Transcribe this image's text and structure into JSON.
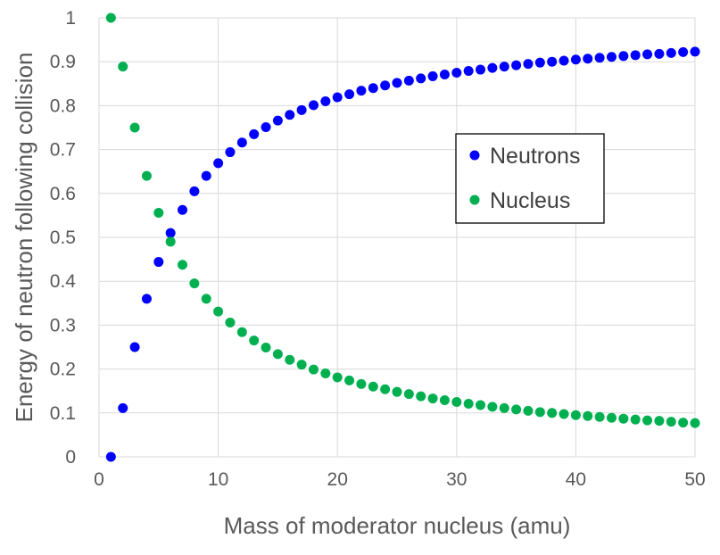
{
  "chart_data": {
    "type": "scatter",
    "title": "",
    "xlabel": "Mass of moderator nucleus (amu)",
    "ylabel": "Energy of neutron following collision",
    "xlim": [
      0,
      50
    ],
    "ylim": [
      0,
      1
    ],
    "xticks": [
      "0",
      "10",
      "20",
      "30",
      "40",
      "50"
    ],
    "yticks": [
      "0",
      "0.1",
      "0.2",
      "0.3",
      "0.4",
      "0.5",
      "0.6",
      "0.7",
      "0.8",
      "0.9",
      "1"
    ],
    "grid": true,
    "legend_position": "right",
    "x": [
      1,
      2,
      3,
      4,
      5,
      6,
      7,
      8,
      9,
      10,
      11,
      12,
      13,
      14,
      15,
      16,
      17,
      18,
      19,
      20,
      21,
      22,
      23,
      24,
      25,
      26,
      27,
      28,
      29,
      30,
      31,
      32,
      33,
      34,
      35,
      36,
      37,
      38,
      39,
      40,
      41,
      42,
      43,
      44,
      45,
      46,
      47,
      48,
      49,
      50
    ],
    "series": [
      {
        "name": "Neutrons",
        "color": "#0000FF",
        "values": [
          0,
          0.111,
          0.25,
          0.36,
          0.444,
          0.51,
          0.5625,
          0.605,
          0.64,
          0.669,
          0.694,
          0.716,
          0.735,
          0.751,
          0.766,
          0.779,
          0.79,
          0.801,
          0.81,
          0.819,
          0.826,
          0.834,
          0.84,
          0.846,
          0.852,
          0.857,
          0.862,
          0.867,
          0.871,
          0.875,
          0.879,
          0.882,
          0.886,
          0.889,
          0.892,
          0.895,
          0.898,
          0.9,
          0.9025,
          0.905,
          0.907,
          0.909,
          0.911,
          0.913,
          0.915,
          0.917,
          0.918,
          0.92,
          0.922,
          0.923
        ]
      },
      {
        "name": "Nucleus",
        "color": "#00B050",
        "values": [
          1,
          0.889,
          0.75,
          0.64,
          0.556,
          0.49,
          0.4375,
          0.395,
          0.36,
          0.331,
          0.306,
          0.284,
          0.265,
          0.249,
          0.234,
          0.221,
          0.21,
          0.199,
          0.19,
          0.181,
          0.174,
          0.166,
          0.16,
          0.154,
          0.148,
          0.143,
          0.138,
          0.133,
          0.129,
          0.125,
          0.121,
          0.118,
          0.114,
          0.111,
          0.108,
          0.105,
          0.102,
          0.1,
          0.0975,
          0.095,
          0.093,
          0.091,
          0.089,
          0.087,
          0.085,
          0.083,
          0.082,
          0.08,
          0.078,
          0.077
        ]
      }
    ]
  }
}
